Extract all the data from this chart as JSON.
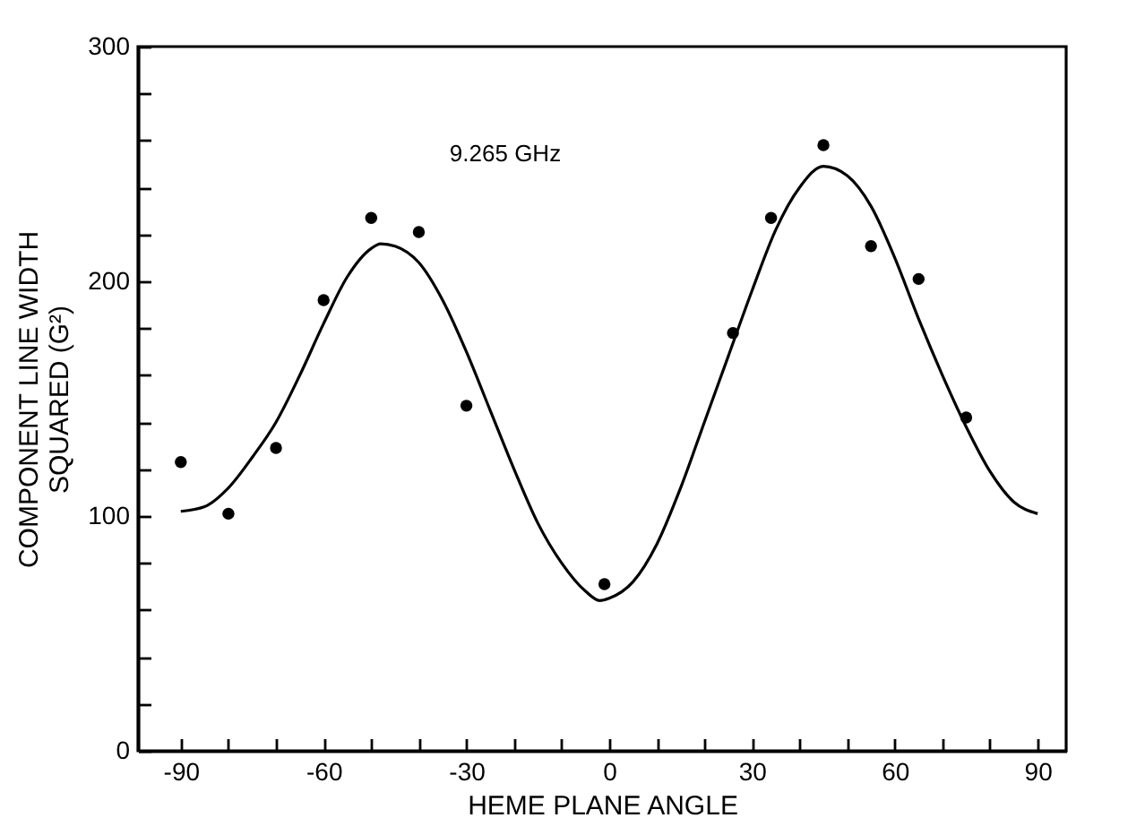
{
  "chart_data": {
    "type": "scatter",
    "xlabel": "HEME PLANE ANGLE",
    "ylabel": "COMPONENT LINE WIDTH SQUARED (G²)",
    "annotations": [
      "9.265 GHz"
    ],
    "xlim": [
      -99,
      96
    ],
    "ylim": [
      0,
      300
    ],
    "xticks": [
      -90,
      {
        "value": -80,
        "label": null
      },
      {
        "value": -70,
        "label": null
      },
      -60,
      {
        "value": -50,
        "label": null
      },
      {
        "value": -40,
        "label": null
      },
      -30,
      {
        "value": -20,
        "label": null
      },
      {
        "value": -10,
        "label": null
      },
      0,
      {
        "value": 10,
        "label": null
      },
      {
        "value": 20,
        "label": null
      },
      30,
      {
        "value": 40,
        "label": null
      },
      {
        "value": 50,
        "label": null
      },
      60,
      {
        "value": 70,
        "label": null
      },
      {
        "value": 80,
        "label": null
      },
      90
    ],
    "yticks": [
      0,
      {
        "value": 20,
        "label": null
      },
      {
        "value": 40,
        "label": null
      },
      {
        "value": 60,
        "label": null
      },
      {
        "value": 80,
        "label": null
      },
      100,
      {
        "value": 120,
        "label": null
      },
      {
        "value": 140,
        "label": null
      },
      {
        "value": 160,
        "label": null
      },
      {
        "value": 180,
        "label": null
      },
      200,
      {
        "value": 220,
        "label": null
      },
      {
        "value": 240,
        "label": null
      },
      {
        "value": 260,
        "label": null
      },
      {
        "value": 280,
        "label": null
      },
      300
    ],
    "grid": false,
    "series": [
      {
        "marker": "circle",
        "color": "#000000",
        "x": [
          -90,
          -80,
          -70,
          -60,
          -50,
          -40,
          -30,
          -1,
          26,
          34,
          45,
          55,
          65,
          75
        ],
        "values": [
          123,
          101,
          129,
          192,
          227,
          221,
          147,
          71,
          178,
          227,
          258,
          215,
          201,
          142
        ]
      },
      {
        "type": "line",
        "marker": "none",
        "color": "#000000",
        "x": [
          -90,
          -85,
          -80,
          -75,
          -70,
          -65,
          -60,
          -55,
          -50,
          -48,
          -45,
          -40,
          -35,
          -30,
          -25,
          -20,
          -15,
          -10,
          -5,
          -2,
          0,
          5,
          10,
          15,
          20,
          25,
          30,
          35,
          40,
          45,
          50,
          55,
          60,
          65,
          70,
          75,
          80,
          85,
          90
        ],
        "values": [
          102,
          104,
          112,
          125,
          140,
          160,
          182,
          202,
          214,
          216,
          215,
          208,
          192,
          170,
          145,
          120,
          97,
          80,
          68,
          64,
          65,
          72,
          88,
          112,
          140,
          168,
          196,
          222,
          240,
          249,
          245,
          232,
          210,
          184,
          160,
          138,
          119,
          106,
          101
        ]
      }
    ]
  }
}
